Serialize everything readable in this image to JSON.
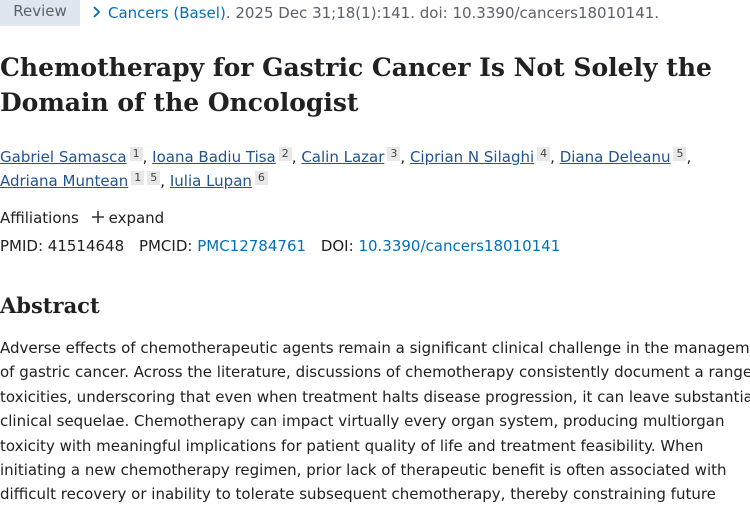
{
  "header": {
    "badge": "Review",
    "journal": "Cancers (Basel)",
    "citation": ". 2025 Dec 31;18(1):141. doi: 10.3390/cancers18010141."
  },
  "title": "Chemotherapy for Gastric Cancer Is Not Solely the Domain of the Oncologist",
  "authors": [
    {
      "name": "Gabriel Samasca",
      "affiliations": [
        "1"
      ],
      "separator": ","
    },
    {
      "name": "Ioana Badiu Tisa",
      "affiliations": [
        "2"
      ],
      "separator": ","
    },
    {
      "name": "Calin Lazar",
      "affiliations": [
        "3"
      ],
      "separator": ","
    },
    {
      "name": "Ciprian N Silaghi",
      "affiliations": [
        "4"
      ],
      "separator": ","
    },
    {
      "name": "Diana Deleanu",
      "affiliations": [
        "5"
      ],
      "separator": ","
    },
    {
      "name": "Adriana Muntean",
      "affiliations": [
        "1",
        "5"
      ],
      "separator": ","
    },
    {
      "name": "Iulia Lupan",
      "affiliations": [
        "6"
      ]
    }
  ],
  "affiliations": {
    "label": "Affiliations",
    "action": "expand"
  },
  "identifiers": {
    "pmid_label": "PMID:",
    "pmid": "41514648",
    "pmcid_label": "PMCID:",
    "pmcid": "PMC12784761",
    "doi_label": "DOI:",
    "doi": "10.3390/cancers18010141"
  },
  "abstract": {
    "heading": "Abstract",
    "lines": [
      "Adverse effects of chemotherapeutic agents remain a significant clinical challenge in the management",
      "of gastric cancer. Across the literature, discussions of chemotherapy consistently document a range of",
      "toxicities, underscoring that even when treatment halts disease progression, it can leave substantial",
      "clinical sequelae. Chemotherapy can impact virtually every organ system, producing multiorgan",
      "toxicity with meaningful implications for patient quality of life and treatment feasibility. When",
      "initiating a new chemotherapy regimen, prior lack of therapeutic benefit is often associated with",
      "difficult recovery or inability to tolerate subsequent chemotherapy, thereby constraining future"
    ]
  }
}
